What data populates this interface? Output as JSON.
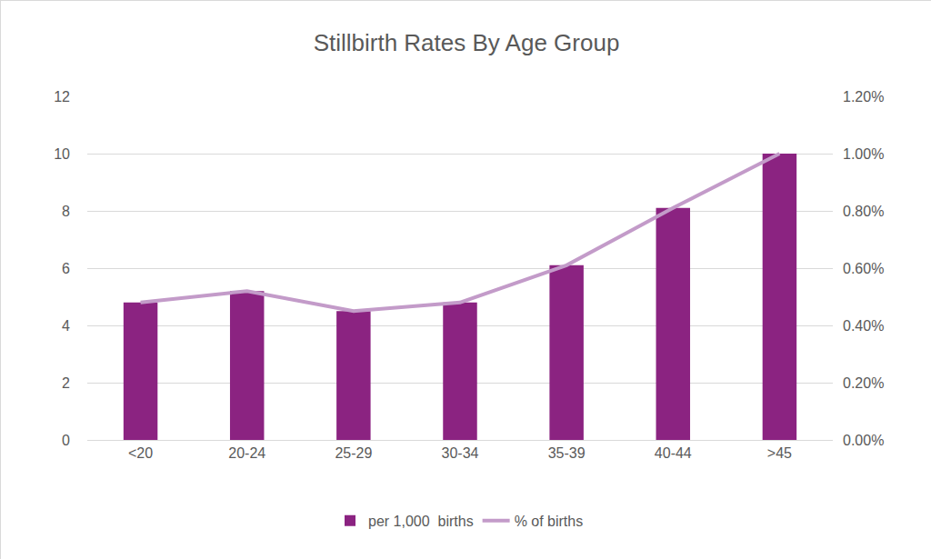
{
  "chart_data": {
    "type": "bar",
    "title": "Stillbirth Rates By Age Group",
    "categories": [
      "<20",
      "20-24",
      "25-29",
      "30-34",
      "35-39",
      "40-44",
      ">45"
    ],
    "series": [
      {
        "name": "per 1,000  births",
        "type": "bar",
        "color": "#8b2381",
        "values": [
          4.8,
          5.2,
          4.5,
          4.8,
          6.1,
          8.1,
          10.0
        ]
      },
      {
        "name": "% of births",
        "type": "line",
        "axis": "y2",
        "color": "#c39bc9",
        "values": [
          0.48,
          0.52,
          0.45,
          0.48,
          0.61,
          0.81,
          1.0
        ]
      }
    ],
    "ylim": [
      0,
      12
    ],
    "yticks": [
      0,
      2,
      4,
      6,
      8,
      10,
      12
    ],
    "y2lim": [
      0,
      1.2
    ],
    "y2ticks": [
      {
        "value": 0,
        "label": "0.00%"
      },
      {
        "value": 0.2,
        "label": "0.20%"
      },
      {
        "value": 0.4,
        "label": "0.40%"
      },
      {
        "value": 0.6,
        "label": "0.60%"
      },
      {
        "value": 0.8,
        "label": "0.80%"
      },
      {
        "value": 1.0,
        "label": "1.00%"
      },
      {
        "value": 1.2,
        "label": "1.20%"
      }
    ],
    "grid": true,
    "legend": "bottom"
  }
}
